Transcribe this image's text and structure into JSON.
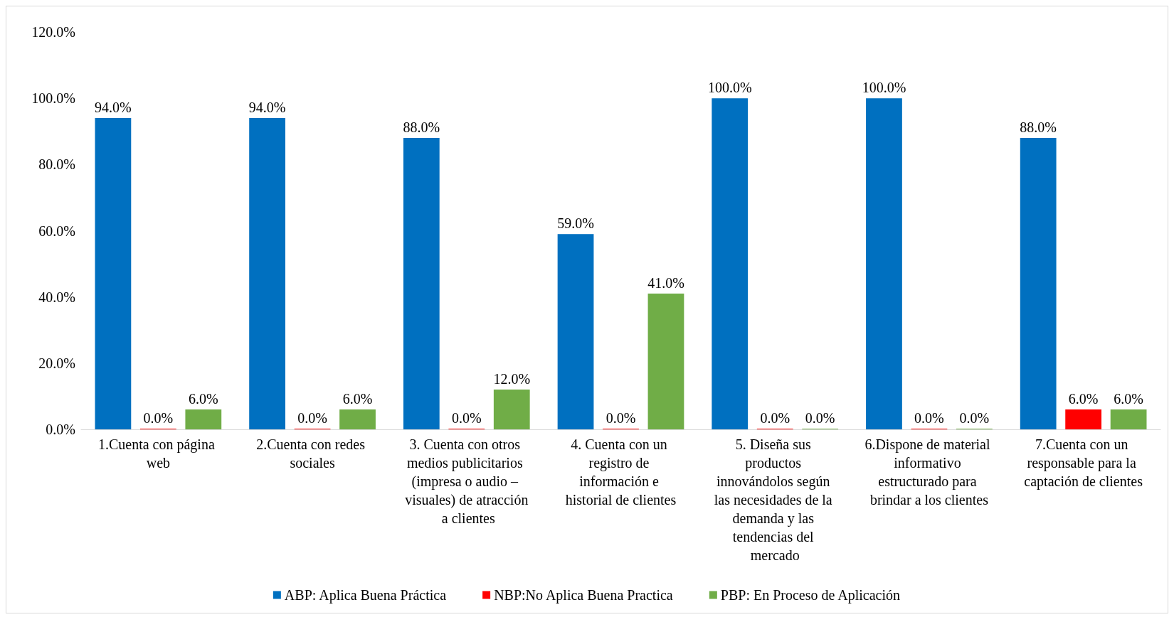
{
  "chart_data": {
    "type": "bar",
    "categories": [
      "1.Cuenta con página web",
      "2.Cuenta con redes sociales",
      "3. Cuenta con otros medios publicitarios (impresa o audio – visuales) de atracción a clientes",
      "4. Cuenta con un registro de información e historial de clientes",
      "5. Diseña sus productos innovándolos según las necesidades de la demanda y las tendencias del mercado",
      "6.Dispone de material informativo estructurado para brindar a los clientes",
      "7.Cuenta con un responsable para la captación de clientes"
    ],
    "series": [
      {
        "name": "ABP: Aplica Buena Práctica",
        "color": "#0070c0",
        "values": [
          94,
          94,
          88,
          59,
          100,
          100,
          88
        ],
        "value_labels": [
          "94.0%",
          "94.0%",
          "88.0%",
          "59.0%",
          "100.0%",
          "100.0%",
          "88.0%"
        ]
      },
      {
        "name": "NBP:No Aplica Buena Practica",
        "color": "#ff0000",
        "values": [
          0,
          0,
          0,
          0,
          0,
          0,
          6
        ],
        "value_labels": [
          "0.0%",
          "0.0%",
          "0.0%",
          "0.0%",
          "0.0%",
          "0.0%",
          "6.0%"
        ]
      },
      {
        "name": "PBP: En Proceso de Aplicación",
        "color": "#70ad47",
        "values": [
          6,
          6,
          12,
          41,
          0,
          0,
          6
        ],
        "value_labels": [
          "6.0%",
          "6.0%",
          "12.0%",
          "41.0%",
          "0.0%",
          "0.0%",
          "6.0%"
        ]
      }
    ],
    "ylim": [
      0,
      120
    ],
    "yticks": [
      {
        "value": 0,
        "label": "0.0%"
      },
      {
        "value": 20,
        "label": "20.0%"
      },
      {
        "value": 40,
        "label": "40.0%"
      },
      {
        "value": 60,
        "label": "60.0%"
      },
      {
        "value": 80,
        "label": "80.0%"
      },
      {
        "value": 100,
        "label": "100.0%"
      },
      {
        "value": 120,
        "label": "120.0%"
      }
    ],
    "grid": false,
    "legend": "bottom"
  }
}
